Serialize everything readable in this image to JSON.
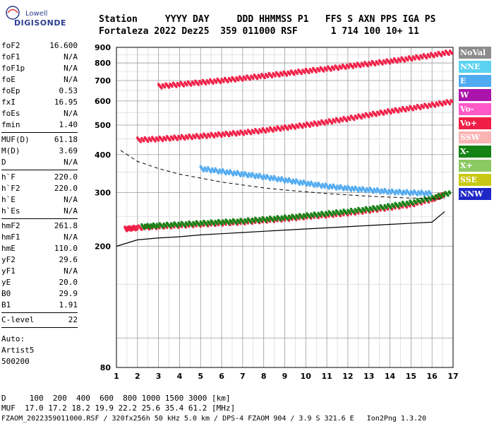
{
  "logo": {
    "brand": "Lowell",
    "name": "DIGISONDE"
  },
  "header": {
    "line1": "Station     YYYY DAY     DDD HHMMSS P1   FFS S AXN PPS IGA PS",
    "line2": "Fortaleza 2022 Dez25  359 011000 RSF      1 714 100 10+ 11"
  },
  "params": {
    "group1": [
      {
        "k": "foF2",
        "v": "16.600"
      },
      {
        "k": "foF1",
        "v": "N/A"
      },
      {
        "k": "foF1p",
        "v": "N/A"
      },
      {
        "k": "foE",
        "v": "N/A"
      },
      {
        "k": "foEp",
        "v": "0.53"
      },
      {
        "k": "fxI",
        "v": "16.95"
      },
      {
        "k": "foEs",
        "v": "N/A"
      },
      {
        "k": "fmin",
        "v": "1.40"
      }
    ],
    "group2": [
      {
        "k": "MUF(D)",
        "v": "61.18"
      },
      {
        "k": "M(D)",
        "v": "3.69"
      },
      {
        "k": "D",
        "v": "N/A"
      }
    ],
    "group3": [
      {
        "k": "h`F",
        "v": "220.0"
      },
      {
        "k": "h`F2",
        "v": "220.0"
      },
      {
        "k": "h`E",
        "v": "N/A"
      },
      {
        "k": "h`Es",
        "v": "N/A"
      }
    ],
    "group4": [
      {
        "k": "hmF2",
        "v": "261.8"
      },
      {
        "k": "hmF1",
        "v": "N/A"
      },
      {
        "k": "hmE",
        "v": "110.0"
      },
      {
        "k": "yF2",
        "v": "29.6"
      },
      {
        "k": "yF1",
        "v": "N/A"
      },
      {
        "k": "yE",
        "v": "20.0"
      },
      {
        "k": "B0",
        "v": "29.9"
      },
      {
        "k": "B1",
        "v": "1.91"
      }
    ],
    "clevel": {
      "k": "C-level",
      "v": "22"
    },
    "auto": [
      "Auto:",
      "Artist5",
      "500200"
    ]
  },
  "legend": [
    {
      "label": "NoVal",
      "color": "#8c8c8c"
    },
    {
      "label": "NNE",
      "color": "#5ad2f0"
    },
    {
      "label": "E",
      "color": "#50aaf0"
    },
    {
      "label": "W",
      "color": "#aa14aa"
    },
    {
      "label": "Vo-",
      "color": "#ff5ac8"
    },
    {
      "label": "Vo+",
      "color": "#f01e46"
    },
    {
      "label": "SSW",
      "color": "#fab4b4"
    },
    {
      "label": "X-",
      "color": "#148214"
    },
    {
      "label": "X+",
      "color": "#8cc864"
    },
    {
      "label": "SSE",
      "color": "#c8c814"
    },
    {
      "label": "NNW",
      "color": "#1e28c8"
    }
  ],
  "chart_data": {
    "type": "scatter",
    "title": "",
    "xlabel": "",
    "ylabel": "",
    "xlim": [
      1,
      17
    ],
    "ylim": [
      80,
      900
    ],
    "y_scale": "log",
    "x_ticks": [
      1,
      2,
      3,
      4,
      5,
      6,
      7,
      8,
      9,
      10,
      11,
      12,
      13,
      14,
      15,
      16,
      17
    ],
    "y_ticks": [
      80,
      200,
      300,
      400,
      500,
      600,
      700,
      800,
      900
    ],
    "grid": true,
    "legend_position": "right",
    "traces": [
      {
        "name": "O-trace F2 (1st)",
        "color": "#f01e46",
        "x": [
          1.4,
          2,
          3,
          4,
          5,
          6,
          7,
          8,
          9,
          10,
          11,
          12,
          13,
          14,
          15,
          16,
          16.6
        ],
        "y": [
          228,
          230,
          232,
          234,
          236,
          238,
          240,
          243,
          246,
          250,
          253,
          257,
          262,
          268,
          274,
          285,
          296
        ]
      },
      {
        "name": "X-trace F2",
        "color": "#148214",
        "x": [
          2.2,
          3,
          4,
          5,
          6,
          7,
          8,
          9,
          10,
          11,
          12,
          13,
          14,
          15,
          16,
          16.9
        ],
        "y": [
          232,
          234,
          236,
          238,
          240,
          242,
          245,
          248,
          252,
          256,
          260,
          265,
          271,
          278,
          288,
          300
        ]
      },
      {
        "name": "Multiple reflection (2nd)",
        "color": "#f01e46",
        "x": [
          2,
          3,
          4,
          5,
          6,
          7,
          8,
          9,
          10,
          11,
          12,
          13,
          14,
          15,
          16,
          17
        ],
        "y": [
          447,
          450,
          455,
          460,
          466,
          472,
          480,
          490,
          500,
          512,
          525,
          540,
          555,
          568,
          582,
          598
        ]
      },
      {
        "name": "Multiple reflection (3rd)",
        "color": "#f01e46",
        "x": [
          3,
          4,
          5,
          6,
          7,
          8,
          9,
          10,
          11,
          12,
          13,
          14,
          15,
          16,
          17
        ],
        "y": [
          670,
          680,
          690,
          700,
          712,
          725,
          738,
          752,
          765,
          780,
          795,
          810,
          828,
          848,
          870
        ]
      },
      {
        "name": "Oblique echoes",
        "color": "#50aaf0",
        "x": [
          5,
          6,
          7,
          8,
          9,
          10,
          11,
          12,
          13,
          14,
          15,
          16
        ],
        "y": [
          360,
          352,
          345,
          338,
          330,
          322,
          315,
          310,
          306,
          302,
          300,
          298
        ]
      }
    ],
    "profile": {
      "name": "Profile",
      "color": "#000000",
      "x": [
        1,
        2,
        3,
        4,
        5,
        6,
        7,
        8,
        9,
        10,
        11,
        12,
        13,
        14,
        15,
        16,
        16.6
      ],
      "y": [
        200,
        210,
        213,
        215,
        218,
        220,
        222,
        224,
        226,
        228,
        230,
        232,
        234,
        236,
        238,
        240,
        260
      ]
    },
    "dashed_curve": {
      "name": "MUF curve",
      "color": "#000000",
      "x": [
        1.2,
        2,
        3,
        4,
        5,
        6,
        7,
        8,
        9,
        10,
        11,
        12,
        13,
        14,
        15,
        16,
        16.6
      ],
      "y": [
        413,
        380,
        360,
        345,
        335,
        325,
        318,
        311,
        306,
        302,
        298,
        295,
        292,
        290,
        288,
        287,
        286
      ]
    }
  },
  "footer": {
    "line1": "D     100  200  400  600  800 1000 1500 3000 [km]",
    "line2": "MUF  17.0 17.2 18.2 19.9 22.2 25.6 35.4 61.2 [MHz]",
    "line3": "FZAOM_2022359011000.RSF / 320fx256h 50 kHz 5.0 km / DPS-4 FZAOM 904 / 3.9 S 321.6 E   Ion2Png 1.3.20"
  }
}
